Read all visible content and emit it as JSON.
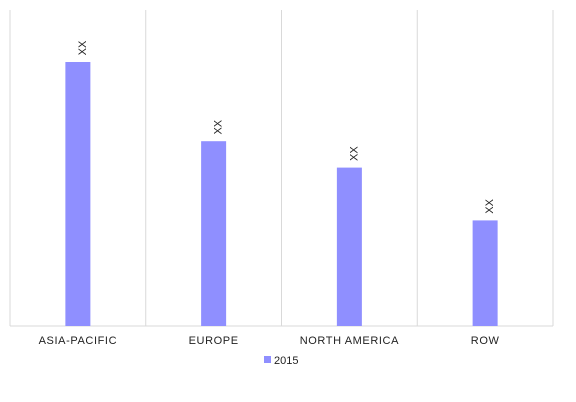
{
  "chart_data": {
    "type": "bar",
    "categories": [
      "ASIA-PACIFIC",
      "EUROPE",
      "NORTH AMERICA",
      "ROW"
    ],
    "series": [
      {
        "name": "2015",
        "values": [
          100,
          70,
          60,
          40
        ],
        "data_labels": [
          "XX",
          "XX",
          "XX",
          "XX"
        ]
      }
    ],
    "ylim": [
      0,
      100
    ],
    "grid": "vertical category separators",
    "legend": "bottom-center",
    "colors": {
      "bar": "#8f8fff",
      "grid": "#d9d9d9",
      "text": "#222222"
    }
  }
}
